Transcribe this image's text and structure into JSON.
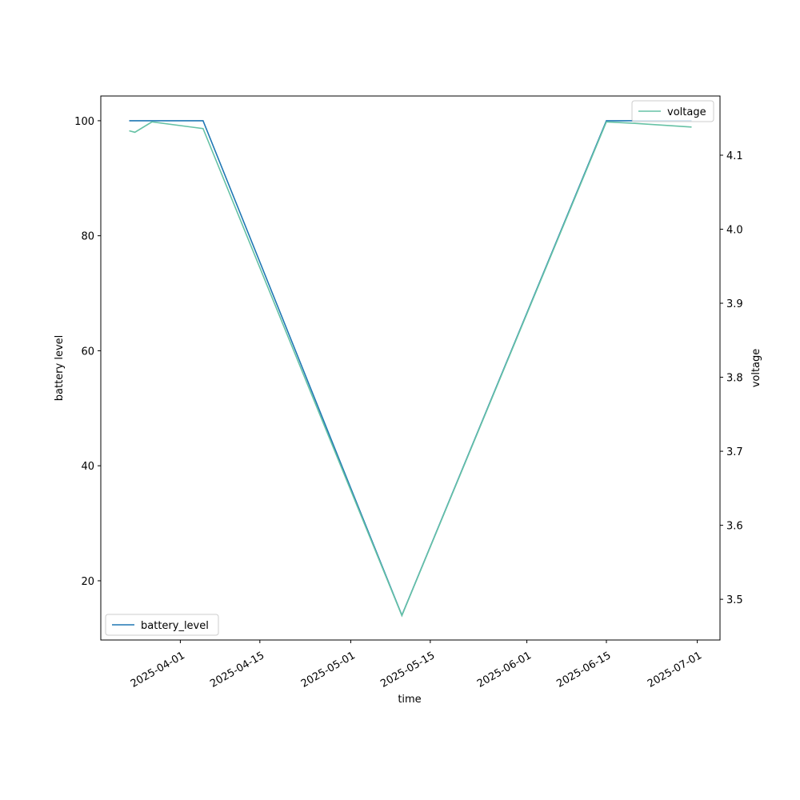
{
  "chart_data": {
    "type": "line",
    "x_label": "time",
    "y_label": "battery level",
    "y2_label": "voltage",
    "x": [
      "2025-03-23",
      "2025-03-24",
      "2025-03-27",
      "2025-04-03",
      "2025-04-05",
      "2025-05-10",
      "2025-06-15",
      "2025-06-20",
      "2025-06-30"
    ],
    "series": [
      {
        "name": "battery_level",
        "color": "#1f77b4",
        "values": [
          100,
          100,
          100,
          100,
          100,
          14,
          100,
          100,
          100
        ]
      },
      {
        "name": "voltage",
        "color": "#66c2a5",
        "axis": "y2",
        "values": [
          4.133,
          4.131,
          4.145,
          4.138,
          4.136,
          3.478,
          4.145,
          4.143,
          4.138
        ]
      }
    ],
    "xlim": [
      "2025-03-18",
      "2025-07-05"
    ],
    "xticks": [
      "2025-04-01",
      "2025-04-15",
      "2025-05-01",
      "2025-05-15",
      "2025-06-01",
      "2025-06-15",
      "2025-07-01"
    ],
    "ylim": [
      9.7,
      104.3
    ],
    "yticks": [
      20,
      40,
      60,
      80,
      100
    ],
    "y2lim": [
      3.445,
      4.18
    ],
    "y2ticks": [
      3.5,
      3.6,
      3.7,
      3.8,
      3.9,
      {
        "value": 4,
        "label": "4.0"
      },
      4.1
    ],
    "legend": [
      "lower left",
      "upper right"
    ],
    "grid": false
  }
}
